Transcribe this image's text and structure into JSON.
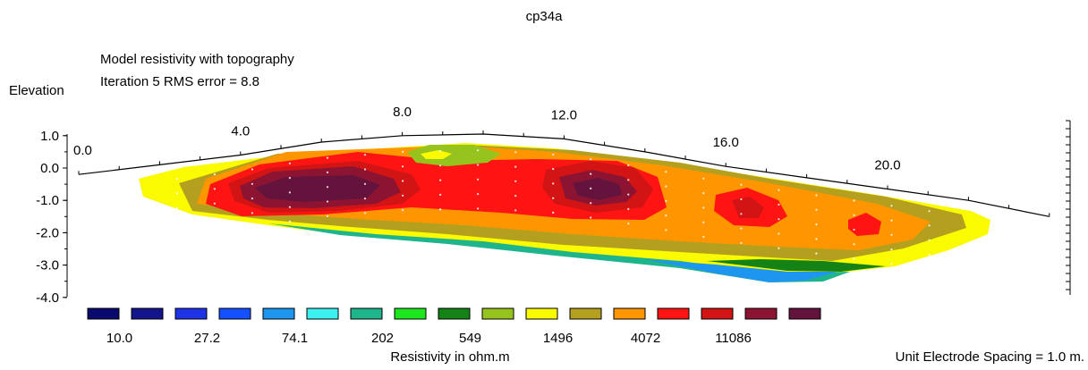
{
  "chart_data": {
    "type": "heatmap",
    "title": "cp34a",
    "subtitle_line1": "Model resistivity with topography",
    "subtitle_line2": "Iteration 5 RMS error = 8.8",
    "ylabel": "Elevation",
    "xlabel": "Unit Electrode Spacing = 1.0 m.",
    "colorbar_label": "Resistivity in ohm.m",
    "x_range": [
      0,
      24
    ],
    "y_range": [
      -4,
      1
    ],
    "x_tick_labels": [
      {
        "x": 0,
        "label": "0.0"
      },
      {
        "x": 4,
        "label": "4.0"
      },
      {
        "x": 8,
        "label": "8.0"
      },
      {
        "x": 12,
        "label": "12.0"
      },
      {
        "x": 16,
        "label": "16.0"
      },
      {
        "x": 20,
        "label": "20.0"
      }
    ],
    "y_tick_labels": [
      {
        "y": 1,
        "label": "1.0"
      },
      {
        "y": 0,
        "label": "0.0"
      },
      {
        "y": -1,
        "label": "-1.0"
      },
      {
        "y": -2,
        "label": "-2.0"
      },
      {
        "y": -3,
        "label": "-3.0"
      },
      {
        "y": -4,
        "label": "-4.0"
      }
    ],
    "topography": [
      [
        0,
        -0.2
      ],
      [
        2,
        0.1
      ],
      [
        4,
        0.4
      ],
      [
        6,
        0.8
      ],
      [
        8,
        1.0
      ],
      [
        10,
        1.05
      ],
      [
        12,
        0.9
      ],
      [
        14,
        0.5
      ],
      [
        16,
        0.05
      ],
      [
        18,
        -0.3
      ],
      [
        20,
        -0.65
      ],
      [
        22,
        -1.0
      ],
      [
        24,
        -1.5
      ]
    ],
    "colorscale": {
      "colors": [
        "#0a0a6e",
        "#14148c",
        "#1e32e6",
        "#1450ff",
        "#1e96f0",
        "#3cf0f0",
        "#1eb48c",
        "#1ee61e",
        "#148214",
        "#96c31e",
        "#fafa00",
        "#b4a01e",
        "#ff9600",
        "#ff1414",
        "#d21414",
        "#8c1432",
        "#64143c"
      ],
      "tick_labels": [
        "10.0",
        "27.2",
        "74.1",
        "202",
        "549",
        "1496",
        "4072",
        "11086"
      ]
    }
  }
}
